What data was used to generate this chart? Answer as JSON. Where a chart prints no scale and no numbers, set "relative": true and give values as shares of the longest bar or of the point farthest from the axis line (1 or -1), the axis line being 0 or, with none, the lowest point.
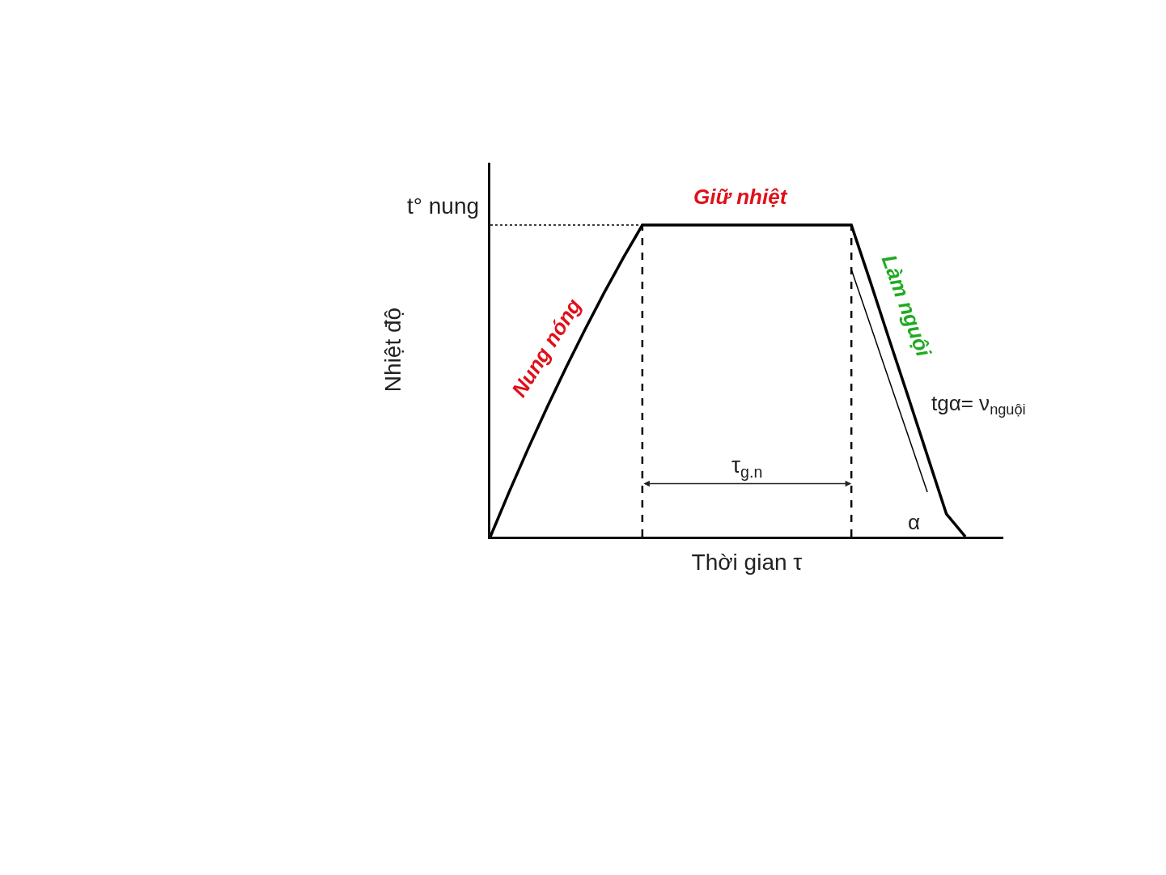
{
  "chart_data": {
    "type": "line",
    "relative": true,
    "xlabel": "Thời gian τ",
    "ylabel": "Nhiệt độ",
    "categories": [
      null,
      null,
      null,
      null,
      null,
      null,
      null,
      null,
      null,
      null,
      null,
      null,
      null,
      null,
      null,
      null,
      null,
      null,
      null,
      null,
      null,
      null,
      null,
      null,
      null,
      null,
      null,
      null
    ],
    "series": [
      {
        "color": "#000000",
        "values": [
          0,
          0.145,
          0.284,
          0.417,
          0.545,
          0.667,
          0.784,
          0.895,
          1,
          1,
          1,
          1,
          1,
          1,
          1,
          1,
          1,
          1,
          1,
          1,
          0.818,
          0.631,
          0.447,
          0.26,
          0.073,
          0,
          null,
          null
        ]
      },
      {
        "color": "#000000",
        "values": [
          null,
          null,
          null,
          null,
          null,
          null,
          null,
          null,
          null,
          null,
          null,
          null,
          null,
          null,
          null,
          null,
          null,
          null,
          null,
          0.857,
          0.679,
          0.5,
          0.322,
          0.143,
          null,
          null,
          null,
          null
        ]
      }
    ],
    "ref_lines": [
      {
        "axis": "y",
        "value": 1,
        "label": "t° nung",
        "line_style": "dotted"
      }
    ],
    "annotations": [
      "Nung nóng",
      "Giữ nhiệt",
      "Làm nguội",
      "tgα= ν$_{nguội}$",
      "α",
      "τ$_{g.n}$"
    ],
    "marker": "none",
    "line_style": "solid"
  }
}
